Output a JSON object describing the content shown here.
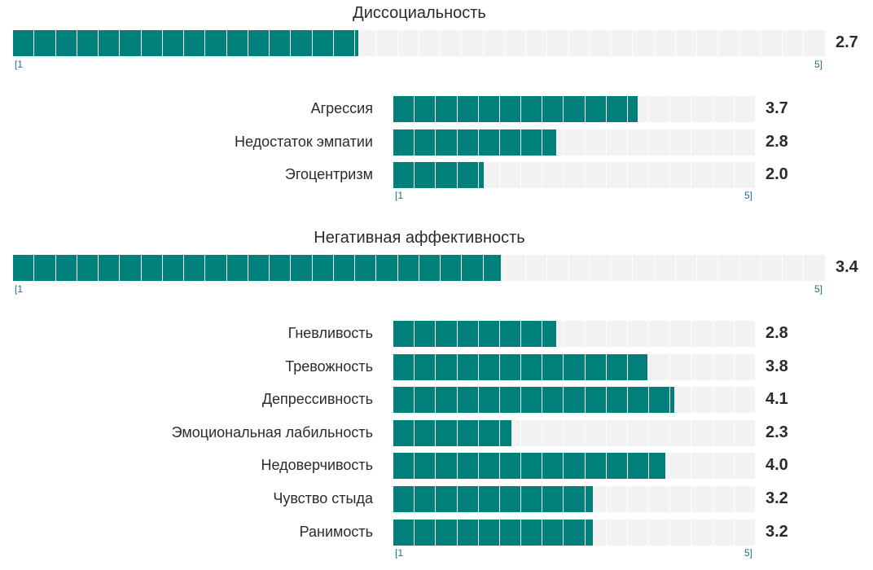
{
  "chart_data": [
    {
      "type": "bar",
      "title": "Диссоциальность",
      "value": 2.7,
      "value_label": "2.7",
      "scale": {
        "min_label": "[1",
        "max_label": "5]",
        "min": 1,
        "max": 5
      },
      "subscales": [
        {
          "name": "Агрессия",
          "value": 3.7,
          "value_label": "3.7"
        },
        {
          "name": "Недостаток эмпатии",
          "value": 2.8,
          "value_label": "2.8"
        },
        {
          "name": "Эгоцентризм",
          "value": 2.0,
          "value_label": "2.0"
        }
      ]
    },
    {
      "type": "bar",
      "title": "Негативная аффективность",
      "value": 3.4,
      "value_label": "3.4",
      "scale": {
        "min_label": "[1",
        "max_label": "5]",
        "min": 1,
        "max": 5
      },
      "subscales": [
        {
          "name": "Гневливость",
          "value": 2.8,
          "value_label": "2.8"
        },
        {
          "name": "Тревожность",
          "value": 3.8,
          "value_label": "3.8"
        },
        {
          "name": "Депрессивность",
          "value": 4.1,
          "value_label": "4.1"
        },
        {
          "name": "Эмоциональная лабильность",
          "value": 2.3,
          "value_label": "2.3"
        },
        {
          "name": "Недоверчивость",
          "value": 4.0,
          "value_label": "4.0"
        },
        {
          "name": "Чувство стыда",
          "value": 3.2,
          "value_label": "3.2"
        },
        {
          "name": "Ранимость",
          "value": 3.2,
          "value_label": "3.2"
        }
      ]
    }
  ],
  "colors": {
    "fill": "#00807b",
    "track": "#f2f2f2",
    "scale_text": "#1f6f89"
  }
}
